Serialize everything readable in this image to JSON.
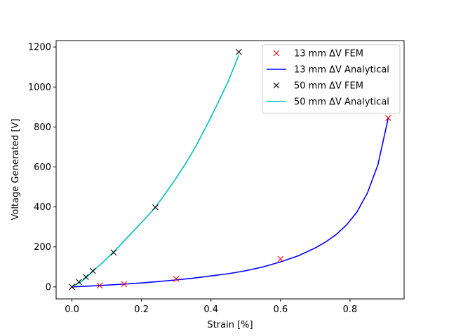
{
  "chart_data": {
    "type": "line",
    "xlabel": "Strain [%]",
    "ylabel": "Voltage Generated [V]",
    "xlim": [
      -0.0455,
      0.9555
    ],
    "ylim": [
      -60,
      1232
    ],
    "xticks": [
      0.0,
      0.2,
      0.4,
      0.6,
      0.8
    ],
    "xtick_labels": [
      "0.0",
      "0.2",
      "0.4",
      "0.6",
      "0.8"
    ],
    "yticks": [
      0,
      200,
      400,
      600,
      800,
      1000,
      1200
    ],
    "ytick_labels": [
      "0",
      "200",
      "400",
      "600",
      "800",
      "1000",
      "1200"
    ],
    "grid": false,
    "legend_position": "top-right",
    "series": [
      {
        "name": "13 mm ΔV FEM",
        "kind": "markers",
        "marker": "x",
        "color": "#ff0000",
        "x": [
          0.0,
          0.08,
          0.15,
          0.3,
          0.6,
          0.91
        ],
        "y": [
          0,
          7,
          14,
          40,
          140,
          845
        ]
      },
      {
        "name": "13 mm ΔV Analytical",
        "kind": "line",
        "color": "#0000ff",
        "x": [
          0.0,
          0.05,
          0.1,
          0.15,
          0.2,
          0.25,
          0.3,
          0.35,
          0.4,
          0.45,
          0.5,
          0.55,
          0.6,
          0.65,
          0.7,
          0.73,
          0.76,
          0.79,
          0.82,
          0.85,
          0.88,
          0.91
        ],
        "y": [
          0,
          4,
          9,
          14,
          20,
          27,
          35,
          44,
          55,
          66,
          81,
          100,
          125,
          155,
          195,
          225,
          262,
          310,
          375,
          470,
          610,
          845
        ]
      },
      {
        "name": "50 mm ΔV FEM",
        "kind": "markers",
        "marker": "x",
        "color": "#000000",
        "x": [
          0.0,
          0.02,
          0.04,
          0.06,
          0.12,
          0.24,
          0.48
        ],
        "y": [
          0,
          25,
          50,
          80,
          172,
          398,
          1175
        ]
      },
      {
        "name": "50 mm ΔV Analytical",
        "kind": "line",
        "color": "#00bfbf",
        "x": [
          0.0,
          0.03,
          0.06,
          0.09,
          0.12,
          0.15,
          0.18,
          0.21,
          0.24,
          0.27,
          0.3,
          0.33,
          0.36,
          0.39,
          0.42,
          0.45,
          0.48
        ],
        "y": [
          0,
          30,
          78,
          125,
          175,
          230,
          285,
          340,
          398,
          470,
          545,
          625,
          715,
          815,
          920,
          1030,
          1160
        ]
      }
    ]
  }
}
